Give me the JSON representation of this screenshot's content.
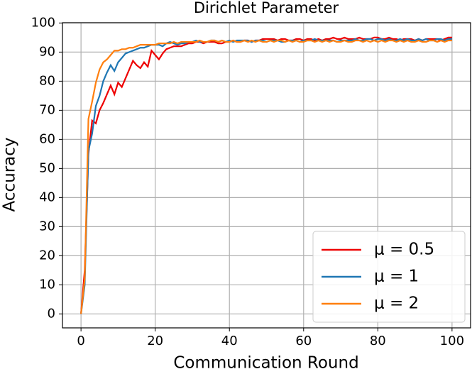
{
  "chart_data": {
    "type": "line",
    "title": "Dirichlet Parameter",
    "x_label": "Communication Round",
    "y_label": "Accuracy",
    "x": [
      0,
      1,
      2,
      3,
      4,
      5,
      6,
      7,
      8,
      9,
      10,
      11,
      12,
      13,
      14,
      15,
      16,
      17,
      18,
      19,
      20,
      21,
      22,
      23,
      24,
      25,
      26,
      27,
      28,
      29,
      30,
      31,
      32,
      33,
      34,
      35,
      36,
      37,
      38,
      39,
      40,
      41,
      42,
      43,
      44,
      45,
      46,
      47,
      48,
      49,
      50,
      51,
      52,
      53,
      54,
      55,
      56,
      57,
      58,
      59,
      60,
      61,
      62,
      63,
      64,
      65,
      66,
      67,
      68,
      69,
      70,
      71,
      72,
      73,
      74,
      75,
      76,
      77,
      78,
      79,
      80,
      81,
      82,
      83,
      84,
      85,
      86,
      87,
      88,
      89,
      90,
      91,
      92,
      93,
      94,
      95,
      96,
      97,
      98,
      99,
      100
    ],
    "series": [
      {
        "name": "μ = 0.5",
        "color": "#ee0000",
        "values": [
          0,
          15,
          55,
          66.5,
          65.5,
          70,
          72.5,
          75.5,
          78.5,
          75.5,
          79.5,
          78,
          81,
          84,
          87,
          85.5,
          84.5,
          86.5,
          85,
          90.5,
          89,
          87.5,
          89.5,
          91,
          91.5,
          92,
          92,
          92,
          92.5,
          93,
          93,
          93.5,
          93.5,
          93,
          93.5,
          93.5,
          93.5,
          93,
          93,
          93.5,
          93.5,
          94,
          93.5,
          93.5,
          94,
          94,
          93.5,
          94,
          94,
          94.5,
          94.5,
          94.5,
          94.5,
          94,
          94.5,
          94.5,
          94,
          94,
          94.5,
          94.5,
          94,
          94.5,
          94.5,
          94,
          94.5,
          94,
          94.5,
          94.5,
          95,
          94.5,
          94.5,
          95,
          94.5,
          94.5,
          94.5,
          95,
          94.5,
          94.5,
          94.5,
          95,
          95,
          94.5,
          94.5,
          95,
          94.5,
          94.5,
          94,
          94.5,
          94.5,
          94.5,
          94,
          94.5,
          94,
          94.5,
          94.5,
          94.5,
          94.5,
          94,
          94.5,
          95,
          95
        ]
      },
      {
        "name": "μ = 1",
        "color": "#1f77b4",
        "values": [
          0,
          10,
          56,
          62,
          71.5,
          75,
          80,
          83,
          85.5,
          83.5,
          86.5,
          88,
          89.5,
          90,
          90.5,
          91,
          91.5,
          91.5,
          92,
          92.5,
          92.5,
          92.5,
          92,
          93,
          93.5,
          93,
          92.5,
          93,
          93,
          93.5,
          93.5,
          94,
          93.5,
          93.5,
          93.5,
          94,
          94,
          93.5,
          94,
          93.5,
          94,
          93.5,
          94,
          94,
          94,
          94,
          93.5,
          94,
          94,
          94,
          93.5,
          94,
          94,
          94,
          93.5,
          93.5,
          94,
          94,
          94,
          93.5,
          94,
          94,
          94,
          94.5,
          94,
          94,
          94,
          94,
          94,
          93.5,
          94,
          94,
          94,
          94,
          94.5,
          94,
          94,
          94.5,
          94.5,
          94,
          94.5,
          94.5,
          94,
          94.5,
          94,
          94,
          94.5,
          94,
          94.5,
          94,
          94,
          94.5,
          94,
          94.5,
          94,
          94,
          94.5,
          94.5,
          94,
          94.5,
          94.5
        ]
      },
      {
        "name": "μ = 2",
        "color": "#ff7f0e",
        "values": [
          0,
          12,
          67,
          73,
          79.5,
          84,
          86.5,
          87.5,
          89,
          90.5,
          90.5,
          91,
          91,
          91.5,
          91.5,
          92,
          92.5,
          92.5,
          92.5,
          92.5,
          92.5,
          93,
          93,
          93,
          93,
          93.5,
          93,
          93.5,
          93.5,
          93.5,
          93.5,
          93.5,
          94,
          93.5,
          93.5,
          94,
          94,
          93.5,
          94,
          93.5,
          93.5,
          94,
          93.5,
          93.5,
          94,
          93.5,
          94,
          93.5,
          94,
          93.5,
          93.5,
          94,
          93.5,
          94,
          94,
          93.5,
          94,
          93.5,
          94,
          93.5,
          93.5,
          94,
          94,
          93.5,
          94,
          93.5,
          94,
          93.5,
          94,
          93.5,
          93.5,
          94,
          93.5,
          93.5,
          94,
          94,
          93.5,
          94,
          93.5,
          94,
          93.5,
          94,
          93.5,
          94,
          94,
          93.5,
          94,
          93.5,
          94,
          93.5,
          93.5,
          94,
          93.5,
          93.5,
          94,
          94,
          93.5,
          94,
          93.5,
          94,
          94
        ]
      }
    ],
    "xlim": [
      -5,
      105
    ],
    "ylim": [
      -4.8,
      100.1
    ],
    "xticks": [
      0,
      20,
      40,
      60,
      80,
      100
    ],
    "yticks": [
      0,
      10,
      20,
      30,
      40,
      50,
      60,
      70,
      80,
      90,
      100
    ],
    "grid": true,
    "legend": "lower right"
  }
}
